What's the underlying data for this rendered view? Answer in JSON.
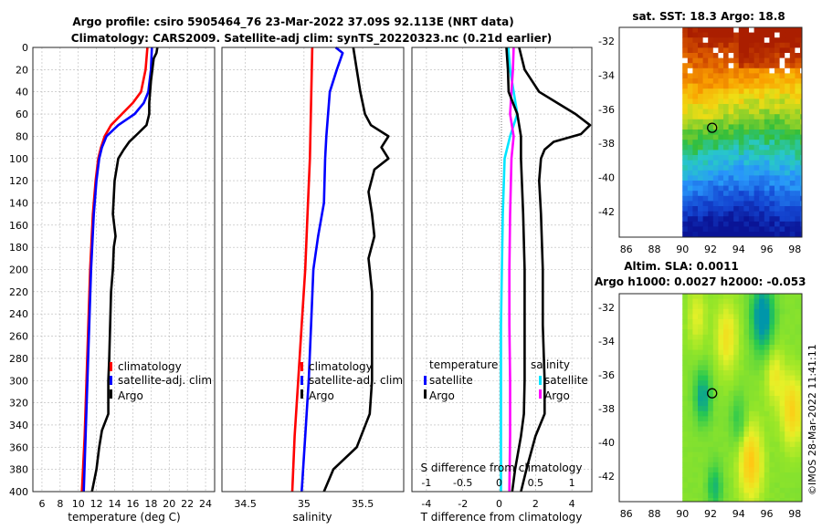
{
  "header": {
    "line1": "Argo profile: csiro 5905464_76 23-Mar-2022 37.09S 92.113E (NRT data)",
    "line2": "Climatology: CARS2009. Satellite-adj clim: synTS_20220323.nc (0.21d earlier)"
  },
  "footer": {
    "credit": "©IMOS 28-Mar-2022 11:41:11"
  },
  "colors": {
    "climatology": "#ff0000",
    "satellite": "#0000ff",
    "argo": "#000000",
    "t_satellite": "#00e5ff",
    "s_satellite": "#ff00ff",
    "marker": "#000000"
  },
  "chart_data": [
    {
      "type": "line",
      "title": "",
      "xlabel": "temperature (deg C)",
      "ylabel": "",
      "xlim": [
        5,
        25
      ],
      "ylim": [
        400,
        0
      ],
      "xticks": [
        6,
        8,
        10,
        12,
        14,
        16,
        18,
        20,
        22,
        24
      ],
      "yticks": [
        0,
        20,
        40,
        60,
        80,
        100,
        120,
        140,
        160,
        180,
        200,
        220,
        240,
        260,
        280,
        300,
        320,
        340,
        360,
        380,
        400
      ],
      "legend": {
        "placement": "bottom-right",
        "entries": [
          "climatology",
          "satellite-adj. clim",
          "Argo"
        ]
      },
      "series": [
        {
          "name": "climatology",
          "color": "#ff0000",
          "depth": [
            0,
            20,
            40,
            50,
            60,
            70,
            80,
            90,
            100,
            120,
            150,
            200,
            250,
            300,
            350,
            400
          ],
          "values": [
            17.6,
            17.4,
            16.9,
            16.0,
            14.8,
            13.6,
            12.9,
            12.5,
            12.2,
            11.9,
            11.6,
            11.3,
            11.1,
            10.9,
            10.7,
            10.4
          ]
        },
        {
          "name": "satellite-adj. clim",
          "color": "#0000ff",
          "depth": [
            0,
            20,
            40,
            50,
            60,
            70,
            80,
            90,
            100,
            120,
            150,
            200,
            250,
            300,
            350,
            400
          ],
          "values": [
            18.1,
            18.0,
            17.7,
            17.2,
            16.2,
            14.4,
            13.1,
            12.6,
            12.3,
            12.0,
            11.7,
            11.4,
            11.2,
            11.0,
            10.8,
            10.6
          ]
        },
        {
          "name": "Argo",
          "color": "#000000",
          "depth": [
            0,
            5,
            10,
            30,
            50,
            60,
            70,
            78,
            85,
            92,
            100,
            120,
            150,
            170,
            180,
            200,
            220,
            250,
            280,
            300,
            330,
            345,
            360,
            380,
            400
          ],
          "values": [
            18.7,
            18.6,
            18.3,
            18.0,
            17.8,
            17.8,
            17.5,
            16.5,
            15.6,
            15.0,
            14.4,
            14.0,
            13.8,
            14.1,
            13.9,
            13.8,
            13.6,
            13.5,
            13.4,
            13.3,
            13.3,
            12.6,
            12.3,
            12.0,
            11.5
          ]
        }
      ]
    },
    {
      "type": "line",
      "xlabel": "salinity",
      "xlim": [
        34.3,
        35.85
      ],
      "ylim": [
        400,
        0
      ],
      "xticks": [
        34.5,
        35,
        35.5
      ],
      "xticklabels": [
        "34.5",
        "35",
        "35.5"
      ],
      "legend": {
        "placement": "bottom-right",
        "entries": [
          "climatology",
          "satellite-adj. clim",
          "Argo"
        ]
      },
      "series": [
        {
          "name": "climatology",
          "color": "#ff0000",
          "depth": [
            0,
            50,
            100,
            150,
            200,
            250,
            300,
            350,
            400
          ],
          "values": [
            35.07,
            35.06,
            35.05,
            35.03,
            35.01,
            34.98,
            34.95,
            34.92,
            34.9
          ]
        },
        {
          "name": "satellite-adj. clim",
          "color": "#0000ff",
          "depth": [
            0,
            5,
            20,
            40,
            80,
            100,
            140,
            170,
            200,
            250,
            300,
            350,
            400
          ],
          "values": [
            35.27,
            35.33,
            35.28,
            35.22,
            35.19,
            35.18,
            35.17,
            35.12,
            35.08,
            35.06,
            35.04,
            35.01,
            34.98
          ]
        },
        {
          "name": "Argo",
          "color": "#000000",
          "depth": [
            0,
            20,
            40,
            60,
            70,
            80,
            90,
            100,
            110,
            130,
            150,
            170,
            190,
            200,
            220,
            250,
            300,
            330,
            360,
            380,
            400
          ],
          "values": [
            35.42,
            35.45,
            35.48,
            35.52,
            35.57,
            35.72,
            35.66,
            35.72,
            35.6,
            35.55,
            35.58,
            35.6,
            35.55,
            35.56,
            35.58,
            35.58,
            35.58,
            35.56,
            35.45,
            35.25,
            35.17
          ]
        }
      ]
    },
    {
      "type": "line",
      "xlabel": "T difference from climatology",
      "toplabel": "S difference from climatology",
      "xlim": [
        -4.8,
        5.1
      ],
      "ylim": [
        400,
        0
      ],
      "xticks": [
        -4,
        -2,
        0,
        2,
        4
      ],
      "top_xlim": [
        -1.2,
        1.275
      ],
      "top_xticks": [
        -1,
        -0.5,
        0,
        0.5,
        1
      ],
      "top_xticklabels": [
        "-1",
        "-0.5",
        "0",
        "0.5",
        "1"
      ],
      "legend_t": {
        "title": "temperature",
        "entries": [
          "satellite",
          "Argo"
        ]
      },
      "legend_s": {
        "title": "salinity",
        "entries": [
          "satellite",
          "Argo"
        ]
      },
      "series": [
        {
          "name": "T satellite",
          "color": "#00e5ff",
          "axis": "T",
          "depth": [
            0,
            20,
            40,
            60,
            80,
            100,
            150,
            200,
            250,
            300,
            350,
            400
          ],
          "values": [
            0.5,
            0.6,
            0.8,
            1.0,
            0.6,
            0.3,
            0.2,
            0.15,
            0.1,
            0.1,
            0.1,
            0.1
          ]
        },
        {
          "name": "S satellite",
          "color": "#ff00ff",
          "axis": "S",
          "depth": [
            0,
            20,
            40,
            60,
            80,
            100,
            150,
            200,
            250,
            300,
            350,
            400
          ],
          "values": [
            0.2,
            0.19,
            0.17,
            0.15,
            0.2,
            0.17,
            0.15,
            0.14,
            0.14,
            0.15,
            0.15,
            0.14
          ]
        },
        {
          "name": "T Argo",
          "color": "#000000",
          "axis": "T",
          "depth": [
            0,
            20,
            40,
            50,
            60,
            70,
            78,
            85,
            92,
            100,
            120,
            150,
            200,
            250,
            300,
            330,
            350,
            380,
            400
          ],
          "values": [
            1.1,
            1.4,
            2.2,
            3.2,
            4.2,
            5.0,
            4.5,
            3.0,
            2.5,
            2.3,
            2.2,
            2.3,
            2.4,
            2.4,
            2.5,
            2.5,
            2.0,
            1.5,
            1.2
          ]
        },
        {
          "name": "S Argo",
          "color": "#000000",
          "axis": "S",
          "depth": [
            0,
            20,
            40,
            60,
            80,
            100,
            150,
            200,
            250,
            300,
            330,
            350,
            380,
            400
          ],
          "values": [
            0.1,
            0.12,
            0.13,
            0.25,
            0.3,
            0.3,
            0.33,
            0.35,
            0.35,
            0.35,
            0.34,
            0.3,
            0.22,
            0.18
          ]
        }
      ]
    },
    {
      "type": "heatmap",
      "title": "sat. SST: 18.3 Argo: 18.8",
      "xlim": [
        85.5,
        98.5
      ],
      "ylim": [
        -43.5,
        -31.2
      ],
      "xticks": [
        86,
        88,
        90,
        92,
        94,
        96,
        98
      ],
      "yticks": [
        -32,
        -34,
        -36,
        -38,
        -40,
        -42
      ],
      "marker": {
        "lon": 92.113,
        "lat": -37.09
      }
    },
    {
      "type": "heatmap",
      "title_line1": "Altim. SLA: 0.0011",
      "title_line2": "Argo h1000: 0.0027 h2000: -0.053",
      "xlim": [
        85.5,
        98.5
      ],
      "ylim": [
        -43.5,
        -31.2
      ],
      "xticks": [
        86,
        88,
        90,
        92,
        94,
        96,
        98
      ],
      "yticks": [
        -32,
        -34,
        -36,
        -38,
        -40,
        -42
      ],
      "marker": {
        "lon": 92.113,
        "lat": -37.09
      }
    }
  ]
}
